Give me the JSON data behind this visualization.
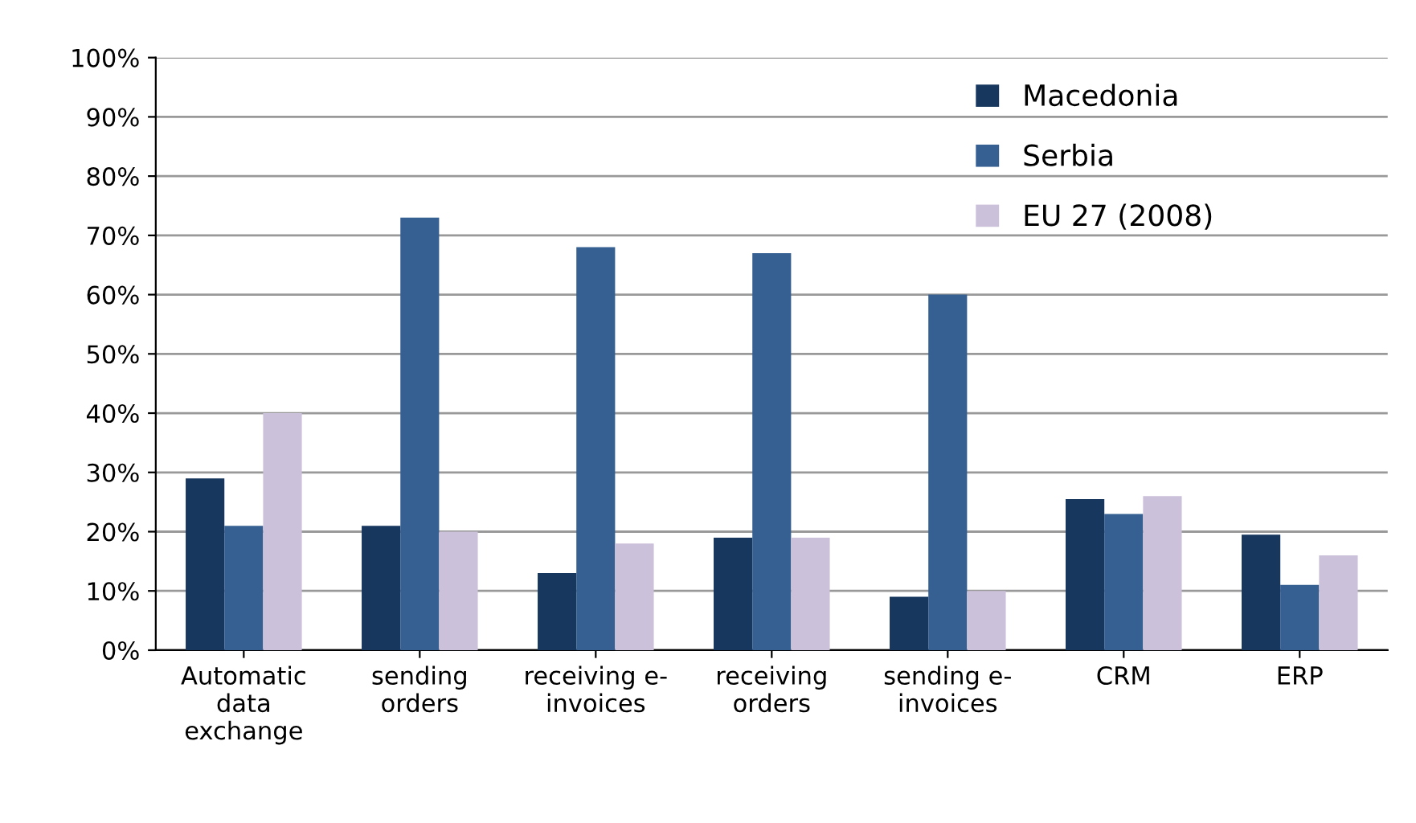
{
  "chart_data": {
    "type": "bar",
    "categories": [
      "Automatic\ndata\nexchange",
      "sending\norders",
      "receiving e-\ninvoices",
      "receiving\norders",
      "sending e-\ninvoices",
      "CRM",
      "ERP"
    ],
    "series": [
      {
        "name": "Macedonia",
        "color": "#17375e",
        "values": [
          29,
          21,
          13,
          19,
          9,
          25.5,
          19.5
        ]
      },
      {
        "name": "Serbia",
        "color": "#366092",
        "values": [
          21,
          73,
          68,
          67,
          60,
          23,
          11
        ]
      },
      {
        "name": "EU 27 (2008)",
        "color": "#ccc1da",
        "values": [
          40,
          20,
          18,
          19,
          10,
          26,
          16
        ]
      }
    ],
    "ylim": [
      0,
      100
    ],
    "yticks": [
      {
        "value": 0,
        "label": "0%"
      },
      {
        "value": 10,
        "label": "10%"
      },
      {
        "value": 20,
        "label": "20%"
      },
      {
        "value": 30,
        "label": "30%"
      },
      {
        "value": 40,
        "label": "40%"
      },
      {
        "value": 50,
        "label": "50%"
      },
      {
        "value": 60,
        "label": "60%"
      },
      {
        "value": 70,
        "label": "70%"
      },
      {
        "value": 80,
        "label": "80%"
      },
      {
        "value": 90,
        "label": "90%"
      },
      {
        "value": 100,
        "label": "100%"
      }
    ],
    "grid": "y",
    "legend": "top right"
  }
}
